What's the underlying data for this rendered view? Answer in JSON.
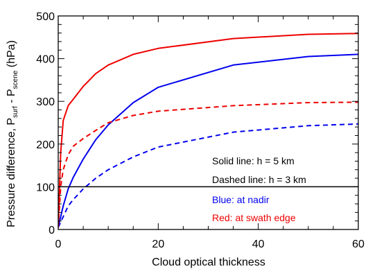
{
  "chart_data": {
    "type": "line",
    "xlabel": "Cloud optical thickness",
    "ylabel": {
      "prefix": "Pressure difference, P",
      "sub1": "surf",
      "middle": " - P",
      "sub2": "scene",
      "suffix": " (hPa)"
    },
    "xlim": [
      0,
      60
    ],
    "ylim": [
      0,
      500
    ],
    "xticks": [
      0,
      20,
      40,
      60
    ],
    "yticks": [
      0,
      100,
      200,
      300,
      400,
      500
    ],
    "x_minor_step": 5,
    "y_minor_step": 20,
    "grid": false,
    "reference_line": {
      "y": 100,
      "color": "#000000"
    },
    "series": [
      {
        "color": "#0000ee",
        "style": "solid",
        "x": [
          0,
          1,
          2,
          3,
          5,
          7.5,
          10,
          15,
          20,
          35,
          50,
          60
        ],
        "y": [
          5,
          55,
          95,
          122,
          165,
          210,
          245,
          297,
          333,
          385,
          405,
          410
        ]
      },
      {
        "color": "#ee0000",
        "style": "solid",
        "x": [
          0,
          0.5,
          1,
          2,
          3,
          5,
          7.5,
          10,
          15,
          20,
          35,
          50,
          60
        ],
        "y": [
          5,
          180,
          255,
          290,
          305,
          335,
          365,
          385,
          410,
          424,
          447,
          457,
          459
        ]
      },
      {
        "color": "#0000ee",
        "style": "dashed",
        "x": [
          0,
          1,
          2,
          3,
          5,
          7.5,
          10,
          15,
          20,
          35,
          50,
          60
        ],
        "y": [
          5,
          30,
          55,
          70,
          95,
          120,
          140,
          170,
          193,
          228,
          243,
          247
        ]
      },
      {
        "color": "#ee0000",
        "style": "dashed",
        "x": [
          0,
          0.5,
          1,
          2,
          3,
          5,
          7.5,
          10,
          15,
          20,
          35,
          50,
          60
        ],
        "y": [
          5,
          100,
          140,
          175,
          195,
          213,
          232,
          250,
          267,
          277,
          290,
          297,
          298
        ]
      }
    ],
    "annotations": [
      {
        "text": "Solid line: h = 5 km",
        "color": "#000000"
      },
      {
        "text": "Dashed line: h = 3 km",
        "color": "#000000"
      },
      {
        "text": "Blue: at nadir",
        "color": "#0000ee"
      },
      {
        "text": "Red: at swath edge",
        "color": "#ee0000"
      }
    ]
  }
}
